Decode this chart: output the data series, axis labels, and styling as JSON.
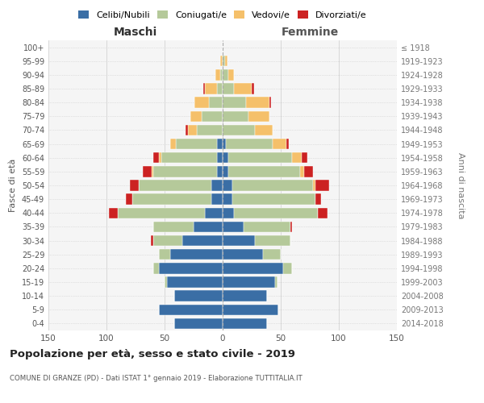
{
  "age_groups": [
    "0-4",
    "5-9",
    "10-14",
    "15-19",
    "20-24",
    "25-29",
    "30-34",
    "35-39",
    "40-44",
    "45-49",
    "50-54",
    "55-59",
    "60-64",
    "65-69",
    "70-74",
    "75-79",
    "80-84",
    "85-89",
    "90-94",
    "95-99",
    "100+"
  ],
  "birth_years": [
    "2014-2018",
    "2009-2013",
    "2004-2008",
    "1999-2003",
    "1994-1998",
    "1989-1993",
    "1984-1988",
    "1979-1983",
    "1974-1978",
    "1969-1973",
    "1964-1968",
    "1959-1963",
    "1954-1958",
    "1949-1953",
    "1944-1948",
    "1939-1943",
    "1934-1938",
    "1929-1933",
    "1924-1928",
    "1919-1923",
    "≤ 1918"
  ],
  "male": {
    "celibi": [
      42,
      55,
      42,
      48,
      55,
      45,
      35,
      25,
      15,
      10,
      10,
      5,
      5,
      5,
      0,
      0,
      0,
      0,
      0,
      0,
      0
    ],
    "coniugati": [
      0,
      0,
      0,
      2,
      5,
      10,
      25,
      35,
      75,
      68,
      62,
      55,
      48,
      35,
      22,
      18,
      12,
      5,
      2,
      0,
      0
    ],
    "vedovi": [
      0,
      0,
      0,
      0,
      0,
      0,
      0,
      0,
      0,
      0,
      0,
      1,
      2,
      5,
      8,
      10,
      12,
      10,
      4,
      2,
      0
    ],
    "divorziati": [
      0,
      0,
      0,
      0,
      0,
      0,
      2,
      0,
      8,
      5,
      8,
      8,
      5,
      0,
      2,
      0,
      0,
      2,
      0,
      0,
      0
    ]
  },
  "female": {
    "nubili": [
      38,
      48,
      38,
      45,
      52,
      35,
      28,
      18,
      10,
      8,
      8,
      5,
      5,
      3,
      0,
      0,
      0,
      0,
      0,
      0,
      0
    ],
    "coniugate": [
      0,
      0,
      0,
      2,
      8,
      15,
      30,
      40,
      72,
      72,
      70,
      62,
      55,
      40,
      28,
      22,
      20,
      10,
      5,
      2,
      0
    ],
    "vedove": [
      0,
      0,
      0,
      0,
      0,
      0,
      0,
      0,
      0,
      0,
      2,
      3,
      8,
      12,
      15,
      18,
      20,
      15,
      5,
      2,
      0
    ],
    "divorziate": [
      0,
      0,
      0,
      0,
      0,
      0,
      0,
      2,
      8,
      5,
      12,
      8,
      5,
      2,
      0,
      0,
      2,
      2,
      0,
      0,
      0
    ]
  },
  "colors": {
    "celibi": "#3a6ea5",
    "coniugati": "#b5c99a",
    "vedovi": "#f5c06a",
    "divorziati": "#cc2222"
  },
  "xlim": 150,
  "title": "Popolazione per età, sesso e stato civile - 2019",
  "subtitle": "COMUNE DI GRANZE (PD) - Dati ISTAT 1° gennaio 2019 - Elaborazione TUTTITALIA.IT",
  "ylabel_left": "Fasce di età",
  "ylabel_right": "Anni di nascita",
  "xlabel_male": "Maschi",
  "xlabel_female": "Femmine",
  "legend_labels": [
    "Celibi/Nubili",
    "Coniugati/e",
    "Vedovi/e",
    "Divorziati/e"
  ]
}
